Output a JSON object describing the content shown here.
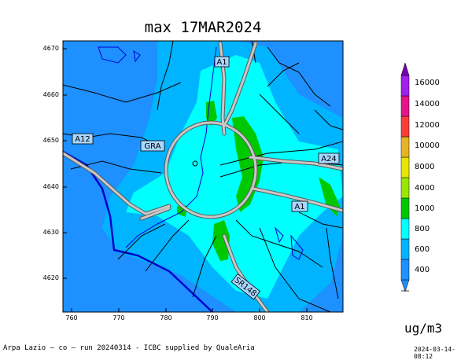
{
  "title": "max 17MAR2024",
  "units": "ug/m3",
  "credit": "Arpa Lazio — co — run 20240314 - ICBC supplied by QualeAria",
  "timestamp": "2024-03-14-08:12",
  "axes": {
    "y_ticks": [
      "4670",
      "4660",
      "4650",
      "4640",
      "4630",
      "4620"
    ],
    "x_ticks": [
      "760",
      "770",
      "780",
      "790",
      "800",
      "810"
    ]
  },
  "colorbar": {
    "levels": [
      "400",
      "600",
      "800",
      "1000",
      "4000",
      "8000",
      "10000",
      "12000",
      "14000",
      "16000"
    ],
    "colors": [
      "#1e90ff",
      "#00b4ff",
      "#00ffff",
      "#00c800",
      "#9be600",
      "#e6e600",
      "#e6b428",
      "#ff3c3c",
      "#e6148c",
      "#a020f0",
      "#7800b4"
    ]
  },
  "roads": [
    "A1",
    "A12",
    "GRA",
    "A24",
    "A1",
    "SR148"
  ],
  "map_colors": {
    "background": "#1e90ff",
    "low": "#00b4ff",
    "mid": "#00ffff",
    "high": "#00c800",
    "sea_coast": "#0000cd",
    "rivers": "#0000cd",
    "boundaries": "#000000",
    "highways": "#b4b4b4"
  }
}
